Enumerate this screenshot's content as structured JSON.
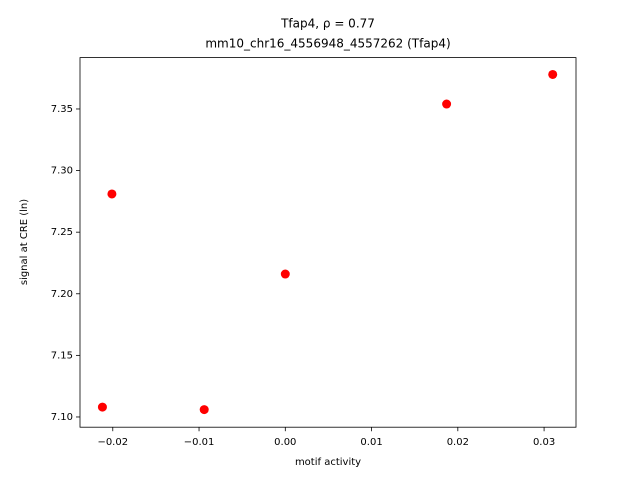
{
  "chart_data": {
    "type": "scatter",
    "title": "Tfap4, ρ = 0.77",
    "subtitle": "mm10_chr16_4556948_4557262 (Tfap4)",
    "x_label": "motif activity",
    "y_label": "signal at CRE (ln)",
    "color": "#ff0000",
    "x": [
      -0.0212,
      -0.0201,
      -0.0094,
      0.0,
      0.0187,
      0.031
    ],
    "values": [
      7.108,
      7.281,
      7.106,
      7.216,
      7.354,
      7.378
    ],
    "xlim": [
      -0.0238,
      0.0337
    ],
    "ylim": [
      7.0917,
      7.3917
    ],
    "xticks": [
      {
        "value": -0.02,
        "label": "−0.02"
      },
      {
        "value": -0.01,
        "label": "−0.01"
      },
      {
        "value": 0,
        "label": "0.00"
      },
      0.01,
      0.02,
      0.03
    ],
    "yticks": [
      {
        "value": 7.1,
        "label": "7.10"
      },
      7.15,
      {
        "value": 7.2,
        "label": "7.20"
      },
      7.25,
      {
        "value": 7.3,
        "label": "7.30"
      },
      7.35
    ],
    "grid": false
  }
}
